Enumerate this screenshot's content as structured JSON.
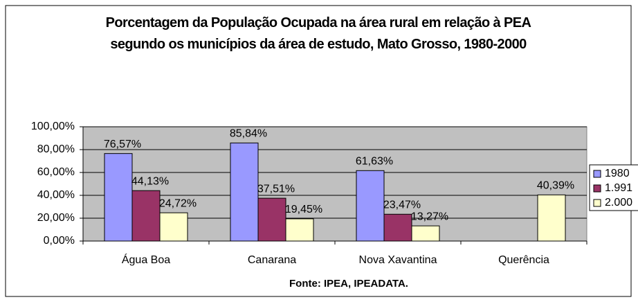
{
  "chart_data": {
    "type": "bar",
    "title": "Porcentagem da População Ocupada na área rural em relação à PEA segundo os municípios da área de estudo, Mato Grosso, 1980-2000",
    "x_label": "Fonte: IPEA, IPEADATA.",
    "categories": [
      "Água Boa",
      "Canarana",
      "Nova Xavantina",
      "Querência"
    ],
    "series": [
      {
        "name": "1980",
        "color": "#9999ff",
        "values": [
          76.57,
          85.84,
          61.63,
          null
        ],
        "value_labels": [
          "76,57%",
          "85,84%",
          "61,63%",
          null
        ]
      },
      {
        "name": "1.991",
        "color": "#993366",
        "values": [
          44.13,
          37.51,
          23.47,
          null
        ],
        "value_labels": [
          "44,13%",
          "37,51%",
          "23,47%",
          null
        ]
      },
      {
        "name": "2.000",
        "color": "#ffffcc",
        "values": [
          24.72,
          19.45,
          13.27,
          40.39
        ],
        "value_labels": [
          "24,72%",
          "19,45%",
          "13,27%",
          "40,39%"
        ]
      }
    ],
    "ylim": [
      0,
      100
    ],
    "yticks": [
      {
        "value": 0,
        "label": "0,00%"
      },
      {
        "value": 20,
        "label": "20,00%"
      },
      {
        "value": 40,
        "label": "40,00%"
      },
      {
        "value": 60,
        "label": "60,00%"
      },
      {
        "value": 80,
        "label": "80,00%"
      },
      {
        "value": 100,
        "label": "100,00%"
      }
    ],
    "grid": true,
    "legend": "right"
  }
}
